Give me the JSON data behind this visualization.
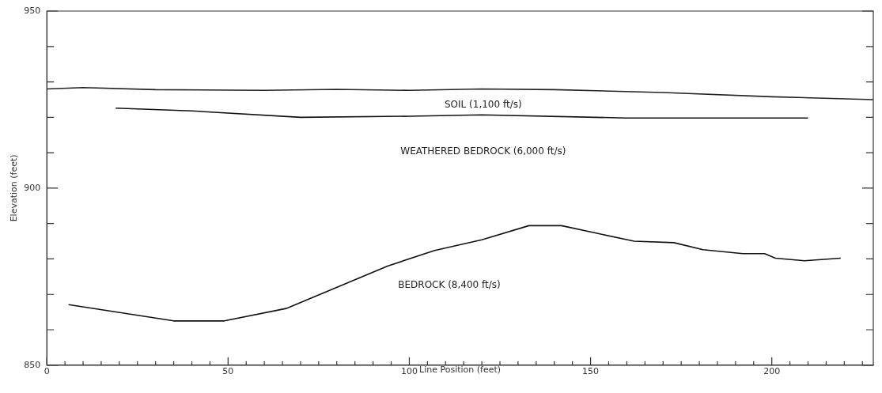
{
  "chart_data": {
    "type": "line",
    "xlabel": "Line Position (feet)",
    "ylabel": "Elevation (feet)",
    "xlim": [
      0,
      228
    ],
    "ylim": [
      850,
      950
    ],
    "xticks": [
      0,
      {
        "value": 5,
        "label": null
      },
      {
        "value": 10,
        "label": null
      },
      {
        "value": 15,
        "label": null
      },
      {
        "value": 20,
        "label": null
      },
      {
        "value": 25,
        "label": null
      },
      {
        "value": 30,
        "label": null
      },
      {
        "value": 35,
        "label": null
      },
      {
        "value": 40,
        "label": null
      },
      {
        "value": 45,
        "label": null
      },
      50,
      {
        "value": 55,
        "label": null
      },
      {
        "value": 60,
        "label": null
      },
      {
        "value": 65,
        "label": null
      },
      {
        "value": 70,
        "label": null
      },
      {
        "value": 75,
        "label": null
      },
      {
        "value": 80,
        "label": null
      },
      {
        "value": 85,
        "label": null
      },
      {
        "value": 90,
        "label": null
      },
      {
        "value": 95,
        "label": null
      },
      100,
      {
        "value": 105,
        "label": null
      },
      {
        "value": 110,
        "label": null
      },
      {
        "value": 115,
        "label": null
      },
      {
        "value": 120,
        "label": null
      },
      {
        "value": 125,
        "label": null
      },
      {
        "value": 130,
        "label": null
      },
      {
        "value": 135,
        "label": null
      },
      {
        "value": 140,
        "label": null
      },
      {
        "value": 145,
        "label": null
      },
      150,
      {
        "value": 155,
        "label": null
      },
      {
        "value": 160,
        "label": null
      },
      {
        "value": 165,
        "label": null
      },
      {
        "value": 170,
        "label": null
      },
      {
        "value": 175,
        "label": null
      },
      {
        "value": 180,
        "label": null
      },
      {
        "value": 185,
        "label": null
      },
      {
        "value": 190,
        "label": null
      },
      {
        "value": 195,
        "label": null
      },
      200,
      {
        "value": 205,
        "label": null
      },
      {
        "value": 210,
        "label": null
      },
      {
        "value": 215,
        "label": null
      },
      {
        "value": 220,
        "label": null
      },
      {
        "value": 225,
        "label": null
      }
    ],
    "yticks": [
      850,
      {
        "value": 860,
        "label": null
      },
      {
        "value": 870,
        "label": null
      },
      {
        "value": 880,
        "label": null
      },
      {
        "value": 890,
        "label": null
      },
      900,
      {
        "value": 910,
        "label": null
      },
      {
        "value": 920,
        "label": null
      },
      {
        "value": 930,
        "label": null
      },
      {
        "value": 940,
        "label": null
      },
      950
    ],
    "grid": false,
    "legend": false,
    "marker": "none",
    "line_style": "solid",
    "series": [
      {
        "color": "#222222",
        "x": [
          0,
          10,
          30,
          60,
          80,
          100,
          120,
          140,
          170,
          200,
          228
        ],
        "values": [
          928,
          928.4,
          927.8,
          927.6,
          927.9,
          927.6,
          928,
          927.8,
          927,
          925.8,
          925
        ]
      },
      {
        "color": "#111111",
        "x": [
          19,
          40,
          70,
          100,
          120,
          160,
          210
        ],
        "values": [
          922.6,
          921.8,
          920,
          920.3,
          920.7,
          919.8,
          919.8
        ]
      },
      {
        "color": "#111111",
        "x": [
          6,
          35,
          49,
          66,
          94,
          107,
          120,
          133,
          142,
          162,
          173,
          181,
          192,
          198,
          201,
          209,
          219
        ],
        "values": [
          867.1,
          862.5,
          862.5,
          866,
          878,
          882.4,
          885.4,
          889.4,
          889.4,
          885,
          884.6,
          882.6,
          881.5,
          881.5,
          880.2,
          879.5,
          880.2
        ]
      }
    ],
    "annotations": [
      "SOIL (1,100 ft/s)",
      "WEATHERED BEDROCK (6,000 ft/s)",
      "BEDROCK (8,400 ft/s)"
    ]
  }
}
